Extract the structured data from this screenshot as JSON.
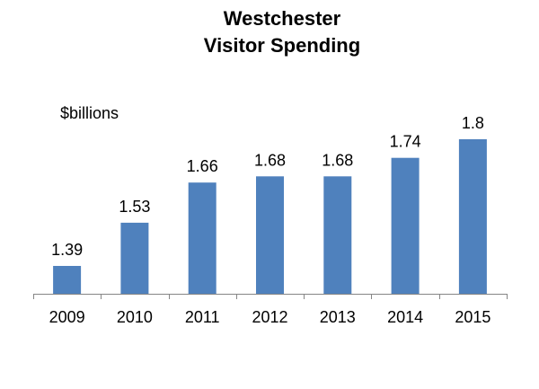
{
  "chart_data": {
    "type": "bar",
    "title": [
      "Westchester",
      "Visitor Spending"
    ],
    "ylabel": "$billions",
    "xlabel": "",
    "categories": [
      "2009",
      "2010",
      "2011",
      "2012",
      "2013",
      "2014",
      "2015"
    ],
    "values": [
      1.39,
      1.53,
      1.66,
      1.68,
      1.68,
      1.74,
      1.8
    ],
    "value_labels": [
      "1.39",
      "1.53",
      "1.66",
      "1.68",
      "1.68",
      "1.74",
      "1.8"
    ],
    "ylim": [
      1.3,
      1.96
    ],
    "grid": false,
    "legend": "none",
    "bar_color": "#4F81BD",
    "axis_color": "#868686"
  }
}
